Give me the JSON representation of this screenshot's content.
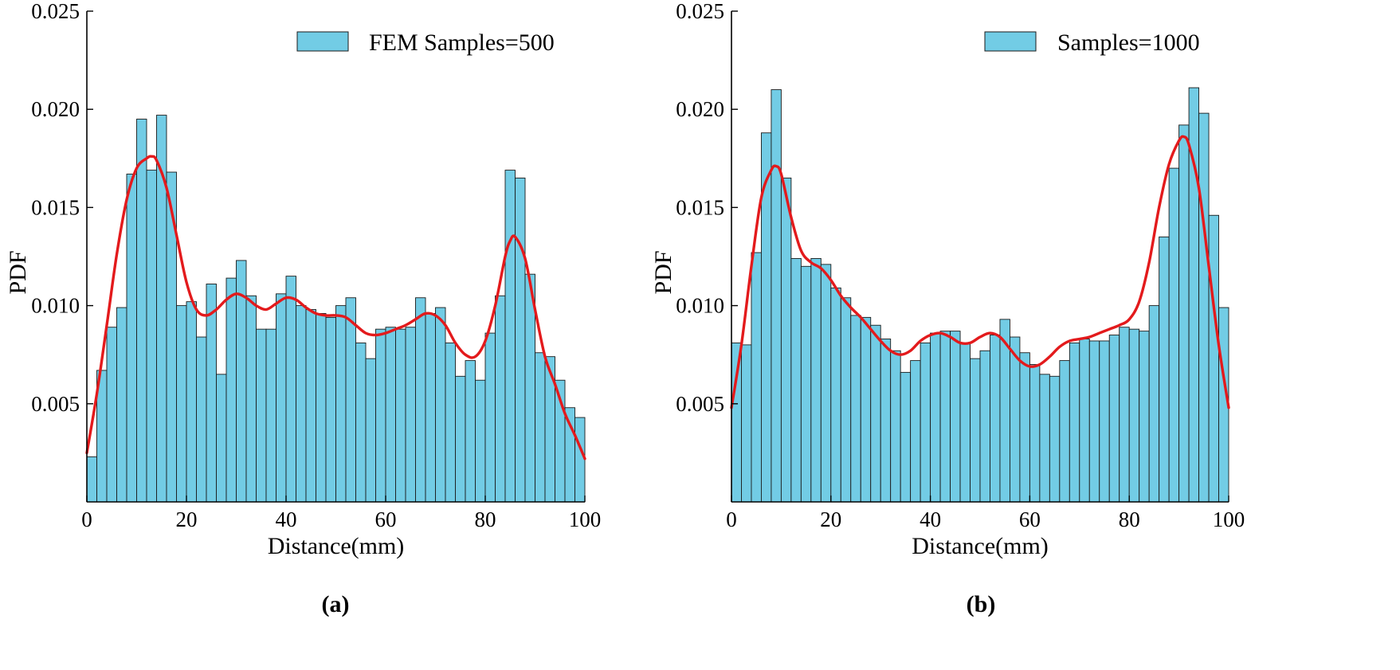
{
  "colors": {
    "bar_fill": "#72cce5",
    "bar_edge": "#1a1a1a",
    "kde_line": "#e31a1c",
    "axis": "#000000"
  },
  "chart_data": [
    {
      "type": "bar",
      "subtype": "histogram-with-kde",
      "caption": "(a)",
      "legend": "FEM Samples=500",
      "legend_position": "top-right",
      "xlabel": "Distance(mm)",
      "ylabel": "PDF",
      "xlim": [
        0,
        100
      ],
      "ylim": [
        0,
        0.025
      ],
      "x_ticks": [
        0,
        20,
        40,
        60,
        80,
        100
      ],
      "x_tick_labels": [
        "0",
        "20",
        "40",
        "60",
        "80",
        "100"
      ],
      "y_ticks": [
        0.005,
        0.01,
        0.015,
        0.02,
        0.025
      ],
      "y_tick_labels": [
        "0.005",
        "0.010",
        "0.015",
        "0.020",
        "0.025"
      ],
      "bin_width": 2,
      "bin_starts": [
        0,
        2,
        4,
        6,
        8,
        10,
        12,
        14,
        16,
        18,
        20,
        22,
        24,
        26,
        28,
        30,
        32,
        34,
        36,
        38,
        40,
        42,
        44,
        46,
        48,
        50,
        52,
        54,
        56,
        58,
        60,
        62,
        64,
        66,
        68,
        70,
        72,
        74,
        76,
        78,
        80,
        82,
        84,
        86,
        88,
        90,
        92,
        94,
        96,
        98
      ],
      "values": [
        0.0023,
        0.0067,
        0.0089,
        0.0099,
        0.0167,
        0.0195,
        0.0169,
        0.0197,
        0.0168,
        0.01,
        0.0102,
        0.0084,
        0.0111,
        0.0065,
        0.0114,
        0.0123,
        0.0105,
        0.0088,
        0.0088,
        0.0106,
        0.0115,
        0.01,
        0.0098,
        0.0096,
        0.0094,
        0.01,
        0.0104,
        0.0081,
        0.0073,
        0.0088,
        0.0089,
        0.0088,
        0.0089,
        0.0104,
        0.0096,
        0.0099,
        0.0081,
        0.0064,
        0.0072,
        0.0062,
        0.0086,
        0.0105,
        0.0169,
        0.0165,
        0.0116,
        0.0076,
        0.0074,
        0.0062,
        0.0048,
        0.0043
      ],
      "kde_x": [
        0,
        2,
        4,
        6,
        8,
        10,
        12,
        13,
        14,
        16,
        18,
        20,
        22,
        24,
        26,
        28,
        30,
        32,
        34,
        36,
        38,
        40,
        42,
        44,
        46,
        48,
        50,
        52,
        54,
        56,
        58,
        60,
        62,
        64,
        66,
        68,
        70,
        72,
        74,
        76,
        78,
        80,
        82,
        84,
        85,
        86,
        88,
        90,
        92,
        94,
        96,
        98,
        100
      ],
      "kde_y": [
        0.0025,
        0.0055,
        0.009,
        0.0126,
        0.0154,
        0.017,
        0.0175,
        0.0176,
        0.0174,
        0.016,
        0.0136,
        0.0112,
        0.0098,
        0.0095,
        0.0098,
        0.0103,
        0.0106,
        0.0104,
        0.01,
        0.0098,
        0.0101,
        0.0104,
        0.0103,
        0.0099,
        0.0096,
        0.0095,
        0.0095,
        0.0094,
        0.009,
        0.0086,
        0.0085,
        0.0086,
        0.0088,
        0.009,
        0.0093,
        0.0096,
        0.0095,
        0.009,
        0.0081,
        0.0075,
        0.0074,
        0.0082,
        0.01,
        0.0125,
        0.0133,
        0.0135,
        0.0124,
        0.0098,
        0.0074,
        0.006,
        0.0045,
        0.0034,
        0.0022
      ]
    },
    {
      "type": "bar",
      "subtype": "histogram-with-kde",
      "caption": "(b)",
      "legend": "Samples=1000",
      "legend_position": "top-right",
      "xlabel": "Distance(mm)",
      "ylabel": "PDF",
      "xlim": [
        0,
        100
      ],
      "ylim": [
        0,
        0.025
      ],
      "x_ticks": [
        0,
        20,
        40,
        60,
        80,
        100
      ],
      "x_tick_labels": [
        "0",
        "20",
        "40",
        "60",
        "80",
        "100"
      ],
      "y_ticks": [
        0.005,
        0.01,
        0.015,
        0.02,
        0.025
      ],
      "y_tick_labels": [
        "0.005",
        "0.010",
        "0.015",
        "0.020",
        "0.025"
      ],
      "bin_width": 2,
      "bin_starts": [
        0,
        2,
        4,
        6,
        8,
        10,
        12,
        14,
        16,
        18,
        20,
        22,
        24,
        26,
        28,
        30,
        32,
        34,
        36,
        38,
        40,
        42,
        44,
        46,
        48,
        50,
        52,
        54,
        56,
        58,
        60,
        62,
        64,
        66,
        68,
        70,
        72,
        74,
        76,
        78,
        80,
        82,
        84,
        86,
        88,
        90,
        92,
        94,
        96,
        98
      ],
      "values": [
        0.0081,
        0.008,
        0.0127,
        0.0188,
        0.021,
        0.0165,
        0.0124,
        0.012,
        0.0124,
        0.0121,
        0.0109,
        0.0104,
        0.0095,
        0.0094,
        0.009,
        0.0083,
        0.0077,
        0.0066,
        0.0072,
        0.0081,
        0.0086,
        0.0087,
        0.0087,
        0.0081,
        0.0073,
        0.0077,
        0.0085,
        0.0093,
        0.0084,
        0.0076,
        0.007,
        0.0065,
        0.0064,
        0.0072,
        0.0081,
        0.0083,
        0.0082,
        0.0082,
        0.0085,
        0.0089,
        0.0088,
        0.0087,
        0.01,
        0.0135,
        0.017,
        0.0192,
        0.0211,
        0.0198,
        0.0146,
        0.0099
      ],
      "kde_x": [
        0,
        2,
        4,
        6,
        8,
        9,
        10,
        12,
        14,
        16,
        18,
        20,
        22,
        24,
        26,
        28,
        30,
        32,
        34,
        36,
        38,
        40,
        42,
        44,
        46,
        48,
        50,
        52,
        54,
        56,
        58,
        60,
        62,
        64,
        66,
        68,
        70,
        72,
        74,
        76,
        78,
        80,
        82,
        84,
        86,
        88,
        90,
        91,
        92,
        94,
        96,
        98,
        100
      ],
      "kde_y": [
        0.0048,
        0.008,
        0.012,
        0.0155,
        0.0169,
        0.0171,
        0.0167,
        0.0145,
        0.0128,
        0.0122,
        0.0119,
        0.0113,
        0.0105,
        0.0099,
        0.0094,
        0.0088,
        0.0082,
        0.0077,
        0.0075,
        0.0077,
        0.0082,
        0.0085,
        0.0086,
        0.0084,
        0.0081,
        0.0081,
        0.0084,
        0.0086,
        0.0084,
        0.0078,
        0.0072,
        0.0069,
        0.007,
        0.0074,
        0.0079,
        0.0082,
        0.0083,
        0.0084,
        0.0086,
        0.0088,
        0.009,
        0.0093,
        0.0102,
        0.0122,
        0.015,
        0.0172,
        0.0184,
        0.0186,
        0.0182,
        0.016,
        0.012,
        0.008,
        0.0048
      ]
    }
  ]
}
